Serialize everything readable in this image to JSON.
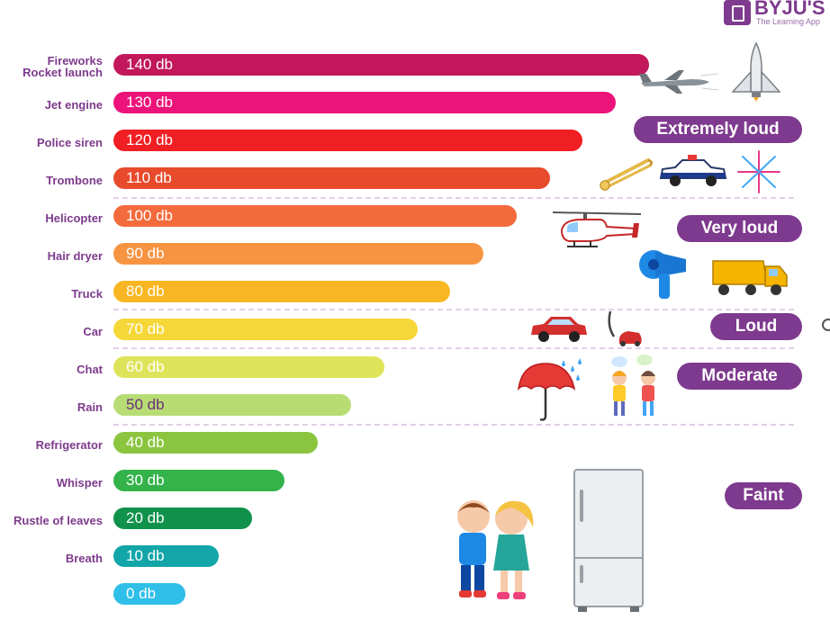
{
  "brand": {
    "name": "BYJU'S",
    "tagline": "The Learning App"
  },
  "chart_data": {
    "type": "bar",
    "orientation": "horizontal",
    "unit": "db",
    "categories": [
      "Fireworks\nRocket launch",
      "Jet engine",
      "Police siren",
      "Trombone",
      "Helicopter",
      "Hair dryer",
      "Truck",
      "Car",
      "Chat",
      "Rain",
      "Refrigerator",
      "Whisper",
      "Rustle of leaves",
      "Breath",
      ""
    ],
    "values": [
      140,
      130,
      120,
      110,
      100,
      90,
      80,
      70,
      60,
      50,
      40,
      30,
      20,
      10,
      0
    ],
    "value_labels": [
      "140 db",
      "130 db",
      "120 db",
      "110 db",
      "100 db",
      "90 db",
      "80 db",
      "70 db",
      "60 db",
      "50 db",
      "40 db",
      "30 db",
      "20 db",
      "10 db",
      "0 db"
    ],
    "colors": [
      "#c2185b",
      "#ec147a",
      "#f01f23",
      "#e84a2c",
      "#f36b3c",
      "#f79442",
      "#f8b722",
      "#f5d738",
      "#dee45a",
      "#b8dc74",
      "#8bc53f",
      "#33b34a",
      "#10924a",
      "#13a6a8",
      "#2fbfe8"
    ],
    "dark_text_rows": [
      9
    ],
    "xlim": [
      0,
      140
    ],
    "loudness_levels": [
      {
        "label": "Extremely loud"
      },
      {
        "label": "Very loud"
      },
      {
        "label": "Loud"
      },
      {
        "label": "Moderate"
      },
      {
        "label": "Faint"
      }
    ]
  },
  "illustrations": [
    "jet-plane-icon",
    "space-shuttle-icon",
    "trombone-icon",
    "police-car-icon",
    "fireworks-icon",
    "helicopter-icon",
    "hair-dryer-icon",
    "truck-icon",
    "car-icon",
    "vacuum-cleaner-icon",
    "umbrella-rain-icon",
    "chatting-kids-icon",
    "whispering-kids-icon",
    "refrigerator-icon"
  ]
}
